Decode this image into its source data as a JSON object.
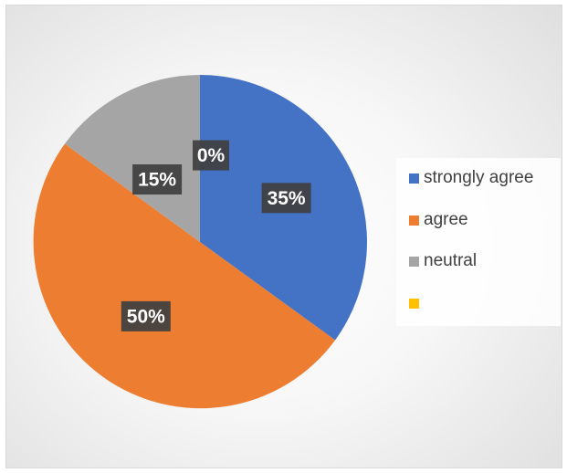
{
  "chart_data": {
    "type": "pie",
    "categories": [
      "strongly agree",
      "agree",
      "neutral",
      ""
    ],
    "values": [
      35,
      50,
      15,
      0
    ],
    "data_labels": [
      "35%",
      "50%",
      "15%",
      "0%"
    ],
    "colors": [
      "#4472c4",
      "#ed7d31",
      "#a5a5a5",
      "#ffc000"
    ],
    "start_angle_deg": 0,
    "direction": "clockwise",
    "legend": {
      "placement": "right",
      "entries": [
        "strongly agree",
        "agree",
        "neutral",
        ""
      ]
    },
    "title": ""
  }
}
